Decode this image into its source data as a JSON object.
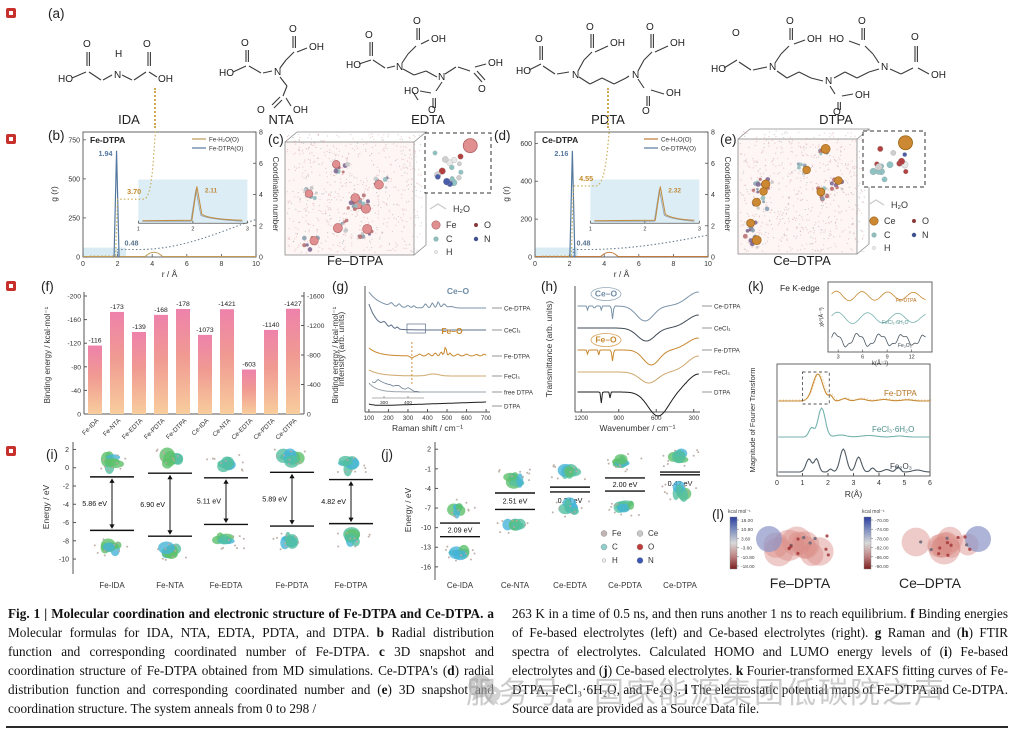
{
  "watermark": {
    "text": "服务号：国家能源集团低碳院之声"
  },
  "panels": {
    "a": {
      "label": "(a)",
      "molecules": [
        "IDA",
        "NTA",
        "EDTA",
        "PDTA",
        "DTPA"
      ],
      "atoms": {
        "ho": "HO",
        "oh": "OH",
        "o": "O",
        "n": "N",
        "h": "H"
      }
    },
    "b": {
      "label": "(b)"
    },
    "c": {
      "label": "(c)",
      "caption": "Fe–DTPA",
      "legend": {
        "water": "H₂O",
        "metal": "Fe",
        "o": "O",
        "c": "C",
        "n": "N",
        "h": "H"
      }
    },
    "d": {
      "label": "(d)"
    },
    "e": {
      "label": "(e)",
      "caption": "Ce–DTPA",
      "legend": {
        "water": "H₂O",
        "metal": "Ce",
        "o": "O",
        "c": "C",
        "n": "N",
        "h": "H"
      }
    },
    "f": {
      "label": "(f)"
    },
    "g": {
      "label": "(g)"
    },
    "h": {
      "label": "(h)"
    },
    "i": {
      "label": "(i)"
    },
    "j": {
      "label": "(j)"
    },
    "k": {
      "label": "(k)"
    },
    "l": {
      "label": "(l)",
      "maps": [
        {
          "name": "Fe–DPTA",
          "unit": "kcal mol⁻¹",
          "ticks": [
            "18.00",
            "10.80",
            "3.60",
            "-3.60",
            "-10.80",
            "-18.00"
          ]
        },
        {
          "name": "Ce–DPTA",
          "unit": "kcal mol⁻¹",
          "ticks": [
            "-70.00",
            "-74.00",
            "-78.00",
            "-82.00",
            "-86.00",
            "-90.00"
          ]
        }
      ]
    }
  },
  "chart_data": [
    {
      "id": "b",
      "type": "line",
      "title": "Fe-DTPA",
      "xlabel": "r / Å",
      "ylabel": "g (r)",
      "y2label": "Coordination number",
      "xlim": [
        0,
        10
      ],
      "ylim": [
        0,
        800
      ],
      "y2lim": [
        0,
        8
      ],
      "xticks": [
        0,
        2,
        4,
        6,
        8,
        10
      ],
      "yticks": [
        0,
        250,
        500,
        750
      ],
      "y2ticks": [
        0,
        2,
        4,
        6,
        8
      ],
      "legend": [
        {
          "label": "Fe-H₂O(O)",
          "color": "#bf9a55"
        },
        {
          "label": "Fe-DTPA(O)",
          "color": "#54789f"
        }
      ],
      "peak_x": 1.94,
      "peak_y": 680,
      "cn1": 3.7,
      "cn_exit": 4.2,
      "cn2_end": 2.4,
      "wbump": 4.1,
      "shade": 60,
      "ann_peak": "1.94",
      "ann_cn1": "3.70",
      "ann_cn2": "0.48",
      "inset_peak": 2.11,
      "inset_label": "2.11",
      "inset_xticks": [
        1,
        2,
        3
      ]
    },
    {
      "id": "d",
      "type": "line",
      "title": "Ce-DTPA",
      "xlabel": "r / Å",
      "ylabel": "g (r)",
      "y2label": "Coordination number",
      "xlim": [
        0,
        10
      ],
      "ylim": [
        0,
        660
      ],
      "y2lim": [
        0,
        8
      ],
      "xticks": [
        0,
        2,
        4,
        6,
        8,
        10
      ],
      "yticks": [
        0,
        200,
        400,
        600
      ],
      "y2ticks": [
        0,
        2,
        4,
        6,
        8
      ],
      "legend": [
        {
          "label": "Ce-H₂O(O)",
          "color": "#c07a3a"
        },
        {
          "label": "Ce-DTPA(O)",
          "color": "#54789f"
        }
      ],
      "peak_x": 2.16,
      "peak_y": 560,
      "cn1": 4.55,
      "cn_exit": 4.3,
      "cn2_end": 1.4,
      "wbump": 4.3,
      "shade": 50,
      "ann_peak": "2.16",
      "ann_cn1": "4.55",
      "ann_cn2": "0.48",
      "inset_peak": 2.32,
      "inset_label": "2.32",
      "inset_xticks": [
        1,
        2,
        3
      ]
    },
    {
      "id": "f",
      "type": "bar",
      "categories": [
        "Fe-IDA",
        "Fe-NTA",
        "Fe-EDTA",
        "Fe-PDTA",
        "Fe-DTPA",
        "Ce-IDA",
        "Ce-NTA",
        "Ce-EDTA",
        "Ce-PDTA",
        "Ce-DTPA"
      ],
      "values": [
        -116,
        -173,
        -139,
        -168,
        -178,
        -1073,
        -1421,
        -603,
        -1140,
        -1427
      ],
      "left_axis": {
        "label": "Binding energy  / kcal·mol⁻¹",
        "ticks": [
          -200,
          -160,
          -120,
          -80,
          -40,
          0
        ],
        "lim": [
          0,
          -200
        ],
        "applies_to": "Fe"
      },
      "right_axis": {
        "label": "Binding energy  / kcal·mol⁻¹",
        "ticks": [
          -1600,
          -1200,
          -800,
          -400,
          0
        ],
        "lim": [
          0,
          -1600
        ],
        "applies_to": "Ce"
      }
    },
    {
      "id": "g",
      "type": "line",
      "xlabel": "Raman shift / cm⁻¹",
      "ylabel": "Intensity (arb. units)",
      "xticks": [
        100,
        200,
        300,
        400,
        500,
        600,
        700
      ],
      "series": [
        "Ce-DTPA",
        "CeCl₃",
        "Fe-DTPA",
        "FeCl₃",
        "free DTPA",
        "DTPA"
      ],
      "ann": {
        "ce": "Ce–O",
        "fe": "Fe–O"
      },
      "inset_xticks": [
        300,
        400
      ]
    },
    {
      "id": "h",
      "type": "line",
      "xlabel": "Wavenumber / cm⁻¹",
      "ylabel": "Transmittance (arb. units)",
      "xticks": [
        1200,
        900,
        600,
        300
      ],
      "series": [
        "Ce-DTPA",
        "CeCl₃",
        "Fe-DTPA",
        "FeCl₃",
        "DTPA"
      ],
      "ann": {
        "ce": "Ce–O",
        "fe": "Fe–O"
      }
    },
    {
      "id": "k",
      "type": "line",
      "title": "Fe K-edge",
      "xlabel": "R(Å)",
      "ylabel": "Magnitude of Fourier Transform",
      "xticks": [
        0,
        1,
        2,
        3,
        4,
        5,
        6
      ],
      "series": [
        "Fe-DTPA",
        "FeCl₃·6H₂O",
        "Fe₂O₃"
      ],
      "inset": {
        "xlabel": "k(Å⁻¹)",
        "ylabel": "χk³(Å⁻³)",
        "xticks": [
          3,
          6,
          9,
          12
        ],
        "series": [
          "Fe-DTPA",
          "FeCl₃·6H₂O",
          "Fe₂O₃"
        ]
      }
    },
    {
      "id": "i",
      "type": "energy-levels",
      "ylabel": "Energy / eV",
      "yticks": [
        2,
        0,
        -2,
        -4,
        -6,
        -8,
        -10
      ],
      "categories": [
        "Fe-IDA",
        "Fe-NTA",
        "Fe-EDTA",
        "Fe-PDTA",
        "Fe-DTPA"
      ],
      "gaps": [
        "5.86 eV",
        "6.90 eV",
        "5.11 eV",
        "5.89 eV",
        "4.82 eV"
      ],
      "lumo": [
        -1.0,
        -0.6,
        -1.1,
        -0.5,
        -1.3
      ],
      "homo": [
        -6.86,
        -7.5,
        -6.21,
        -6.39,
        -6.12
      ]
    },
    {
      "id": "j",
      "type": "energy-levels",
      "ylabel": "Energy / eV",
      "yticks": [
        2,
        -1,
        -4,
        -7,
        -10,
        -13,
        -16
      ],
      "categories": [
        "Ce-IDA",
        "Ce-NTA",
        "Ce-EDTA",
        "Ce-PDTA",
        "Ce-DTPA"
      ],
      "gaps": [
        "2.09 eV",
        "2.51 eV",
        "0.74 eV",
        "2.00 eV",
        "0.42 eV"
      ],
      "lumo": [
        -9.3,
        -4.7,
        -3.8,
        -2.4,
        -1.5
      ],
      "homo": [
        -11.39,
        -7.21,
        -4.54,
        -4.4,
        -1.92
      ],
      "atom_legend": [
        [
          "Fe",
          "Ce"
        ],
        [
          "C",
          "O"
        ],
        [
          "H",
          "N"
        ]
      ]
    }
  ],
  "caption": {
    "left": [
      {
        "t": "Fig. 1 | Molecular coordination and electronic structure of Fe-DTPA and Ce-DTPA. ",
        "b": true
      },
      {
        "t": "a",
        "b": true
      },
      {
        "t": " Molecular formulas for IDA, NTA, EDTA, PDTA, and DTPA. "
      },
      {
        "t": "b",
        "b": true
      },
      {
        "t": " Radial distribution function and corresponding coordinated number of Fe-DTPA. "
      },
      {
        "t": "c",
        "b": true
      },
      {
        "t": " 3D snapshot and coordination structure of Fe-DTPA obtained from MD simulations. Ce-DTPA's ("
      },
      {
        "t": "d",
        "b": true
      },
      {
        "t": ") radial distribution function and corresponding coordinated number and ("
      },
      {
        "t": "e",
        "b": true
      },
      {
        "t": ") 3D snapshot and coordination structure. The system anneals from 0 to 298 /"
      }
    ],
    "right": [
      {
        "t": "263 K in a time of 0.5 ns, and then runs another 1 ns to reach equilibrium. "
      },
      {
        "t": "f",
        "b": true
      },
      {
        "t": " Binding energies of Fe-based electrolytes (left) and Ce-based electrolytes (right). "
      },
      {
        "t": "g",
        "b": true
      },
      {
        "t": " Raman and ("
      },
      {
        "t": "h",
        "b": true
      },
      {
        "t": ") FTIR spectra of electrolytes. Calculated HOMO and LUMO energy levels of ("
      },
      {
        "t": "i",
        "b": true
      },
      {
        "t": ") Fe-based electrolytes and ("
      },
      {
        "t": "j",
        "b": true
      },
      {
        "t": ") Ce-based electrolytes. "
      },
      {
        "t": "k",
        "b": true
      },
      {
        "t": " Fourier-transformed EXAFS fitting curves of Fe-DTPA, FeCl₃·6H₂O, and Fe₂O₃. "
      },
      {
        "t": "l",
        "b": true
      },
      {
        "t": " The electrostatic potential maps of Fe-DTPA and Ce-DTPA. Source data are provided as a Source Data file."
      }
    ]
  }
}
